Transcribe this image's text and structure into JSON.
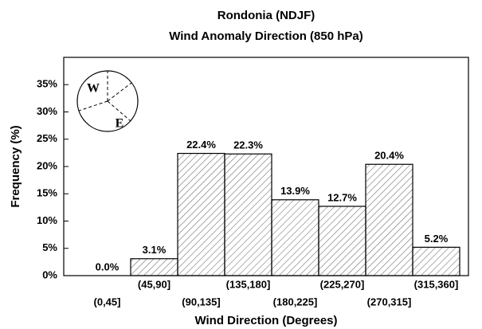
{
  "chart_data": {
    "type": "bar",
    "title": "Rondonia (NDJF)",
    "subtitle": "Wind Anomaly Direction (850 hPa)",
    "xlabel": "Wind Direction (Degrees)",
    "ylabel": "Frequency (%)",
    "categories": [
      "(0,45]",
      "(45,90]",
      "(90,135]",
      "(135,180]",
      "(180,225]",
      "(225,270]",
      "(270,315]",
      "(315,360]"
    ],
    "values": [
      0.0,
      3.1,
      22.4,
      22.3,
      13.9,
      12.7,
      20.4,
      5.2
    ],
    "value_labels": [
      "0.0%",
      "3.1%",
      "22.4%",
      "22.3%",
      "13.9%",
      "12.7%",
      "20.4%",
      "5.2%"
    ],
    "color": "#000000",
    "ylim": [
      0,
      40
    ],
    "yticks": [
      {
        "value": 0,
        "label": "0%"
      },
      {
        "value": 5,
        "label": "5%"
      },
      {
        "value": 10,
        "label": "10%"
      },
      {
        "value": 15,
        "label": "15%"
      },
      {
        "value": 20,
        "label": "20%"
      },
      {
        "value": 25,
        "label": "25%"
      },
      {
        "value": 30,
        "label": "30%"
      },
      {
        "value": 35,
        "label": "35%"
      }
    ],
    "inset_labels": [
      "W",
      "E"
    ]
  }
}
